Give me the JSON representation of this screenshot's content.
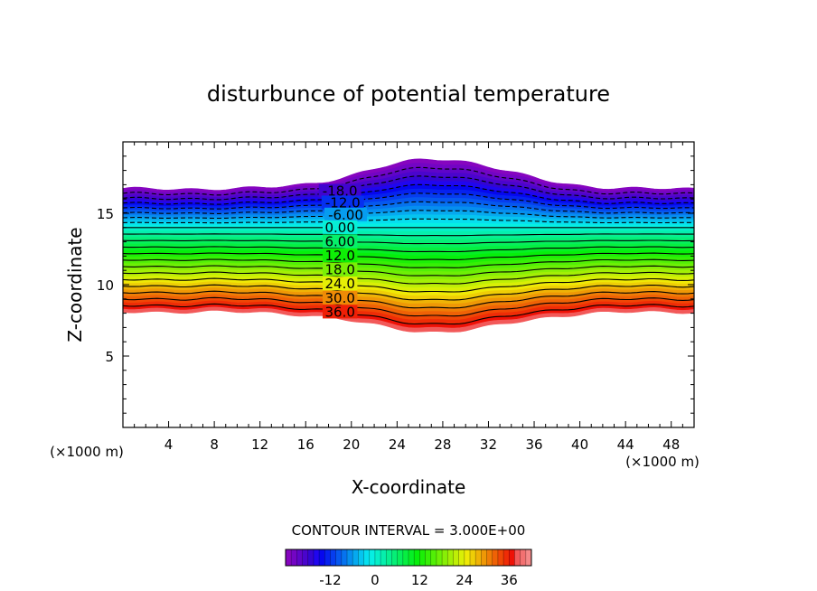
{
  "chart_data": {
    "type": "contour",
    "title": "disturbunce of potential temperature",
    "xlabel": "X-coordinate",
    "ylabel": "Z-coordinate",
    "x_unit": "(×1000 m)",
    "x_unit_right": "(×1000 m)",
    "xlim": [
      0,
      50
    ],
    "ylim": [
      0,
      20
    ],
    "x_ticks": [
      "4",
      "8",
      "12",
      "16",
      "20",
      "24",
      "28",
      "32",
      "36",
      "40",
      "44",
      "48"
    ],
    "y_ticks": [
      "5",
      "10",
      "15"
    ],
    "contour_interval_text": "CONTOUR INTERVAL = 3.000E+00",
    "contour_interval": 3.0,
    "value_range": [
      -24,
      39
    ],
    "contour_labels": [
      "-18.0",
      "-12.0",
      "-6.00",
      "0.00",
      "6.00",
      "12.0",
      "18.0",
      "24.0",
      "30.0",
      "36.0"
    ],
    "colorbar": {
      "ticks": [
        "-12",
        "0",
        "12",
        "24",
        "36"
      ],
      "min": -24,
      "max": 42
    },
    "field_shape": {
      "top_base_z": 16.7,
      "top_peak_z": 18.8,
      "bottom_base_z": 8.1,
      "bottom_trough_z": 6.7,
      "bump_center_x": 27.5,
      "zero_contour_z": 14.0
    }
  }
}
